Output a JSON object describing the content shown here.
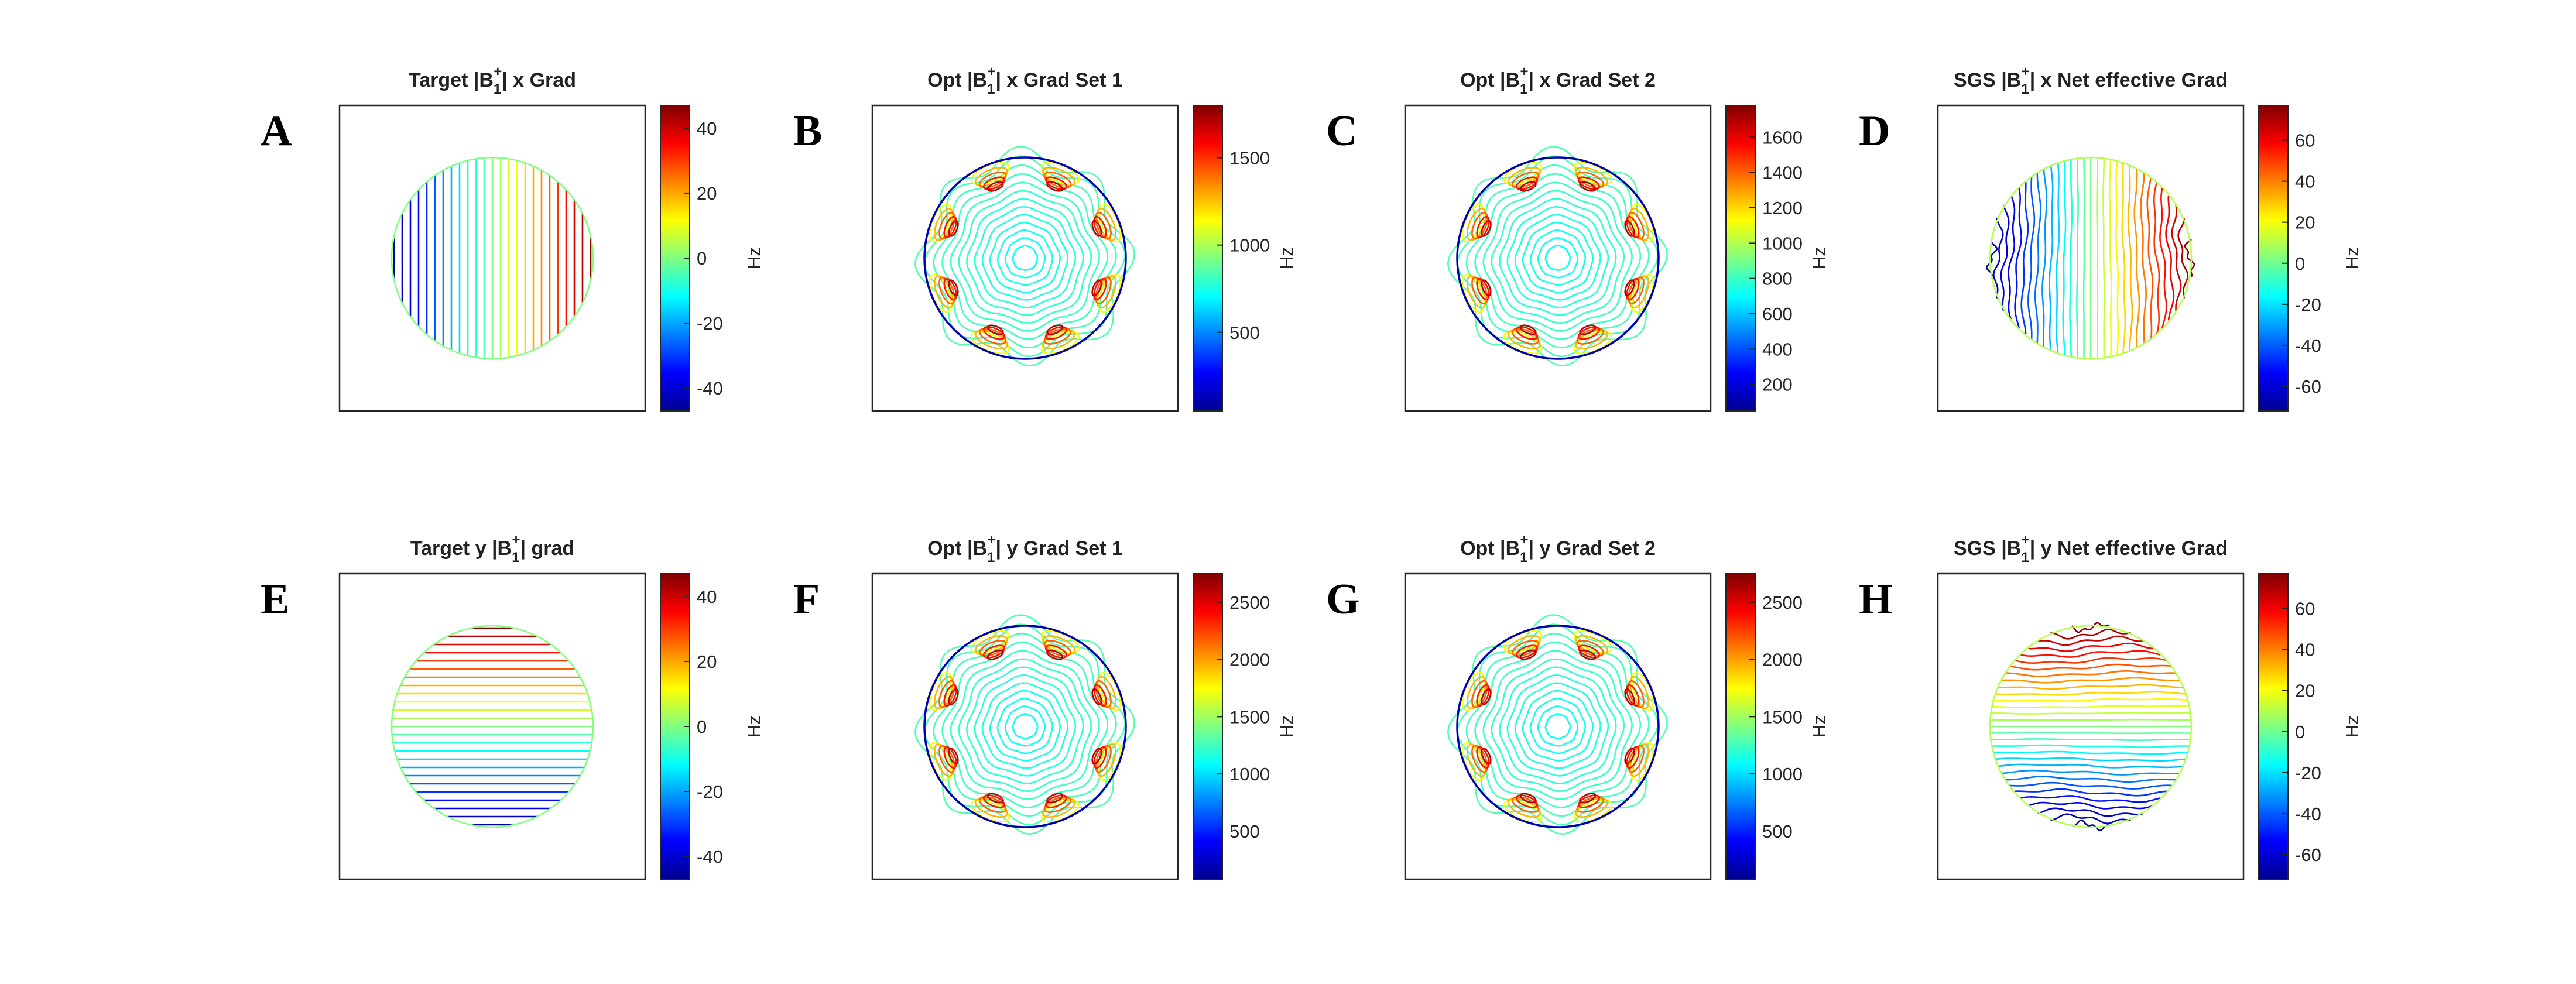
{
  "figure": {
    "colormap": [
      "#00008f",
      "#0000ff",
      "#0080ff",
      "#00ffff",
      "#80ff80",
      "#ffff00",
      "#ff8000",
      "#ff0000",
      "#800000"
    ]
  },
  "chart_data": [
    {
      "type": "contour",
      "panel": "A",
      "title": {
        "pre": "Target ",
        "post": "| x Grad"
      },
      "pattern": "x-linear",
      "colorbar": {
        "label": "Hz",
        "range": [
          -47,
          47
        ],
        "ticks": [
          "-40",
          "-20",
          "0",
          "20",
          "40"
        ],
        "tick_values": [
          -40,
          -20,
          0,
          20,
          40
        ]
      }
    },
    {
      "type": "contour",
      "panel": "B",
      "title": {
        "pre": "Opt ",
        "post": "| x Grad  Set 1"
      },
      "pattern": "radial",
      "colorbar": {
        "label": "Hz",
        "range": [
          50,
          1800
        ],
        "ticks": [
          "500",
          "1000",
          "1500"
        ],
        "tick_values": [
          500,
          1000,
          1500
        ]
      }
    },
    {
      "type": "contour",
      "panel": "C",
      "title": {
        "pre": "Opt ",
        "post": "| x Grad Set 2"
      },
      "pattern": "radial",
      "colorbar": {
        "label": "Hz",
        "range": [
          50,
          1780
        ],
        "ticks": [
          "200",
          "400",
          "600",
          "800",
          "1000",
          "1200",
          "1400",
          "1600"
        ],
        "tick_values": [
          200,
          400,
          600,
          800,
          1000,
          1200,
          1400,
          1600
        ]
      }
    },
    {
      "type": "contour",
      "panel": "D",
      "title": {
        "pre": "SGS ",
        "post": "| x Net effective Grad"
      },
      "pattern": "x-effective",
      "colorbar": {
        "label": "Hz",
        "range": [
          -72,
          77
        ],
        "ticks": [
          "-60",
          "-40",
          "-20",
          "0",
          "20",
          "40",
          "60"
        ],
        "tick_values": [
          -60,
          -40,
          -20,
          0,
          20,
          40,
          60
        ]
      }
    },
    {
      "type": "contour",
      "panel": "E",
      "title": {
        "pre": "Target y ",
        "post": "| grad"
      },
      "pattern": "y-linear",
      "colorbar": {
        "label": "Hz",
        "range": [
          -47,
          47
        ],
        "ticks": [
          "-40",
          "-20",
          "0",
          "20",
          "40"
        ],
        "tick_values": [
          -40,
          -20,
          0,
          20,
          40
        ]
      }
    },
    {
      "type": "contour",
      "panel": "F",
      "title": {
        "pre": "Opt ",
        "post": "| y Grad Set 1"
      },
      "pattern": "radial",
      "colorbar": {
        "label": "Hz",
        "range": [
          80,
          2750
        ],
        "ticks": [
          "500",
          "1000",
          "1500",
          "2000",
          "2500"
        ],
        "tick_values": [
          500,
          1000,
          1500,
          2000,
          2500
        ]
      }
    },
    {
      "type": "contour",
      "panel": "G",
      "title": {
        "pre": "Opt ",
        "post": "| y Grad Set 2"
      },
      "pattern": "radial",
      "colorbar": {
        "label": "Hz",
        "range": [
          80,
          2750
        ],
        "ticks": [
          "500",
          "1000",
          "1500",
          "2000",
          "2500"
        ],
        "tick_values": [
          500,
          1000,
          1500,
          2000,
          2500
        ]
      }
    },
    {
      "type": "contour",
      "panel": "H",
      "title": {
        "pre": "SGS ",
        "post": "| y Net effective Grad"
      },
      "pattern": "y-effective",
      "colorbar": {
        "label": "Hz",
        "range": [
          -72,
          77
        ],
        "ticks": [
          "-60",
          "-40",
          "-20",
          "0",
          "20",
          "40",
          "60"
        ],
        "tick_values": [
          -60,
          -40,
          -20,
          0,
          20,
          40,
          60
        ]
      }
    }
  ]
}
